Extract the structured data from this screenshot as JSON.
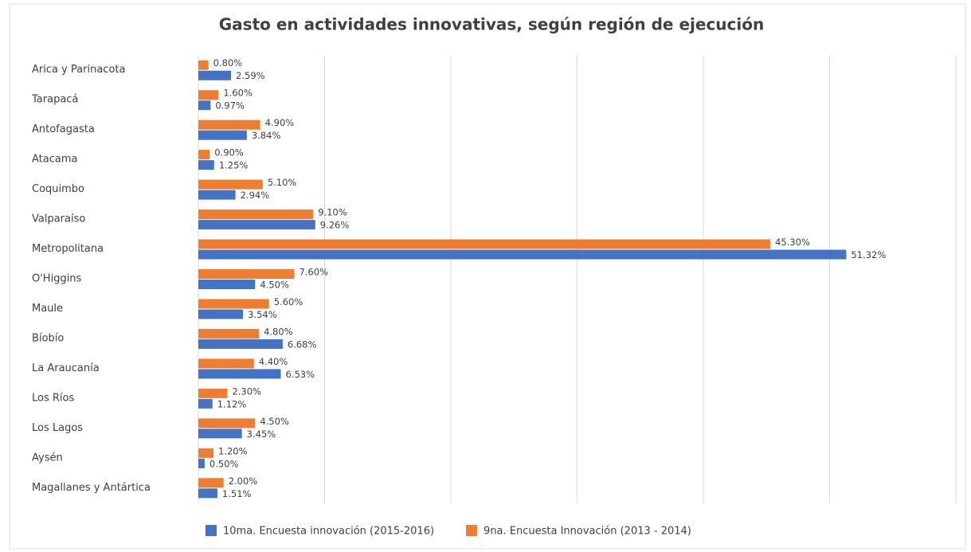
{
  "chart_data": {
    "type": "bar",
    "orientation": "horizontal",
    "title": "Gasto en actividades innovativas, según región de ejecución",
    "categories": [
      "Arica y Parinacota",
      "Tarapacá",
      "Antofagasta",
      "Atacama",
      "Coquimbo",
      "Valparaíso",
      "Metropolitana",
      "O'Higgins",
      "Maule",
      "Bíobío",
      "La Araucanía",
      "Los Ríos",
      "Los Lagos",
      "Aysén",
      "Magallanes y Antártica"
    ],
    "series": [
      {
        "name": "10ma. Encuesta innovación (2015-2016)",
        "color": "#4472c4",
        "values": [
          2.59,
          0.97,
          3.84,
          1.25,
          2.94,
          9.26,
          51.32,
          4.5,
          3.54,
          6.68,
          6.53,
          1.12,
          3.45,
          0.5,
          1.51
        ],
        "value_labels": [
          "2.59%",
          "0.97%",
          "3.84%",
          "1.25%",
          "2.94%",
          "9.26%",
          "51.32%",
          "4.50%",
          "3.54%",
          "6.68%",
          "6.53%",
          "1.12%",
          "3.45%",
          "0.50%",
          "1.51%"
        ]
      },
      {
        "name": "9na. Encuesta Innovación (2013 - 2014)",
        "color": "#ed7d31",
        "values": [
          0.8,
          1.6,
          4.9,
          0.9,
          5.1,
          9.1,
          45.3,
          7.6,
          5.6,
          4.8,
          4.4,
          2.3,
          4.5,
          1.2,
          2.0
        ],
        "value_labels": [
          "0.80%",
          "1.60%",
          "4.90%",
          "0.90%",
          "5.10%",
          "9.10%",
          "45.30%",
          "7.60%",
          "5.60%",
          "4.80%",
          "4.40%",
          "2.30%",
          "4.50%",
          "1.20%",
          "2.00%"
        ]
      }
    ],
    "xlim": [
      0,
      60
    ],
    "xticks": [
      0,
      10,
      20,
      30,
      40,
      50,
      60
    ],
    "grid": true,
    "legend": "bottom"
  }
}
